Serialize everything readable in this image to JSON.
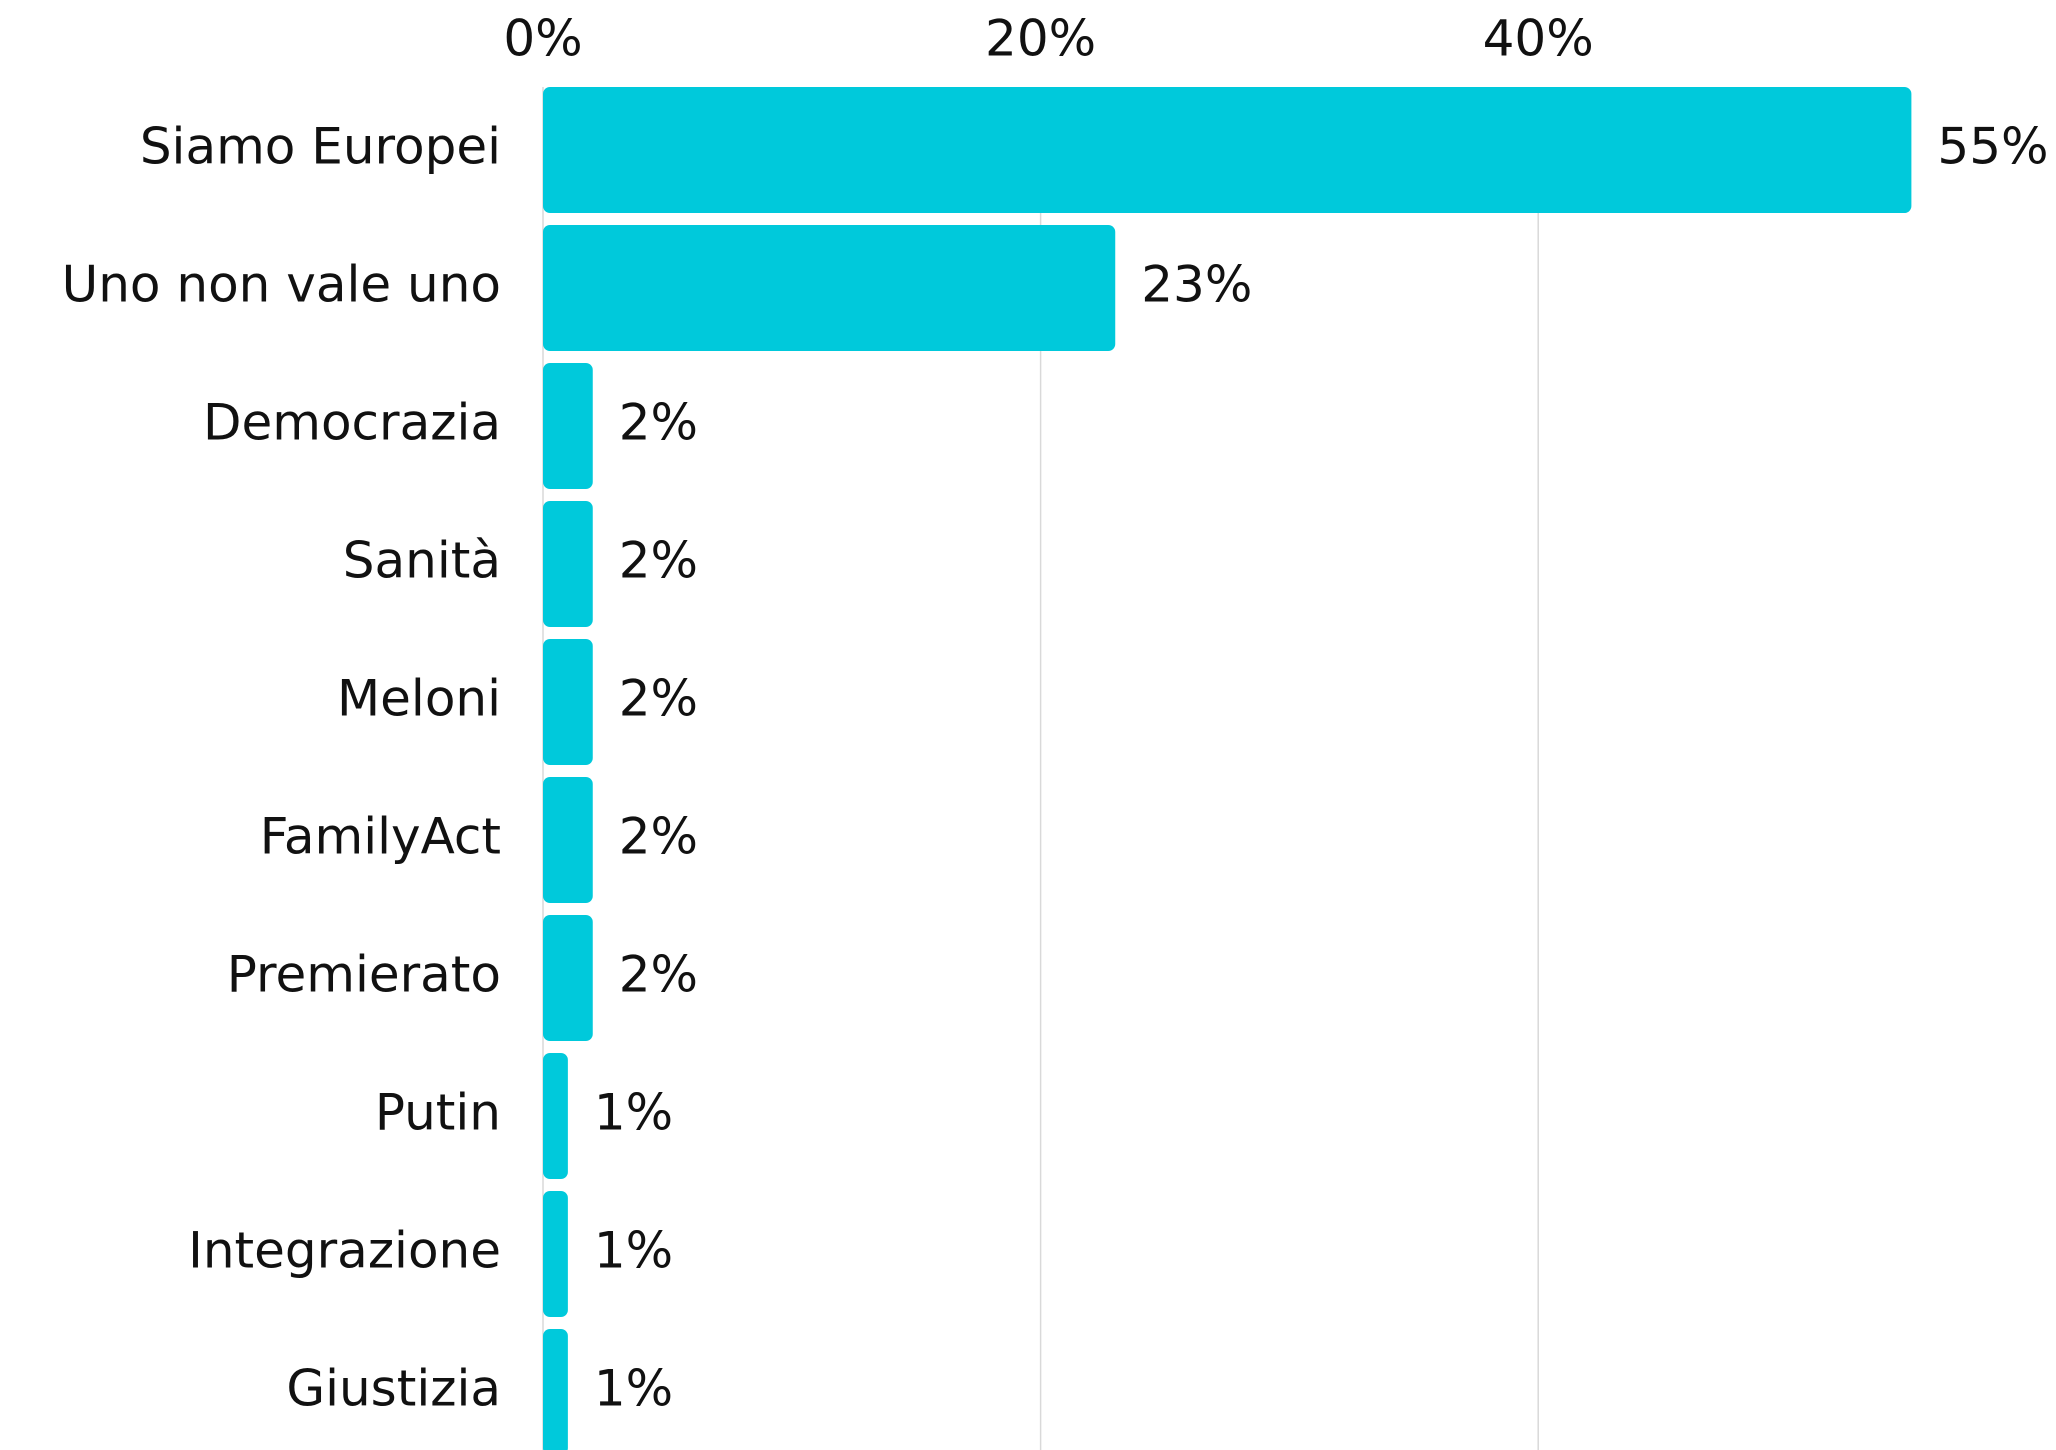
{
  "chart_data": {
    "type": "bar",
    "orientation": "horizontal",
    "categories": [
      "Siamo Europei",
      "Uno non vale uno",
      "Democrazia",
      "Sanità",
      "Meloni",
      "FamilyAct",
      "Premierato",
      "Putin",
      "Integrazione",
      "Giustizia"
    ],
    "values": [
      55,
      23,
      2,
      2,
      2,
      2,
      2,
      1,
      1,
      1
    ],
    "value_labels": [
      "55%",
      "23%",
      "2%",
      "2%",
      "2%",
      "2%",
      "2%",
      "1%",
      "1%",
      "1%"
    ],
    "color": "#00c9db",
    "xlim": [
      0,
      60
    ],
    "xticks": [
      {
        "value": 0,
        "label": "0%"
      },
      {
        "value": 20,
        "label": "20%"
      },
      {
        "value": 40,
        "label": "40%"
      }
    ],
    "grid": true
  }
}
